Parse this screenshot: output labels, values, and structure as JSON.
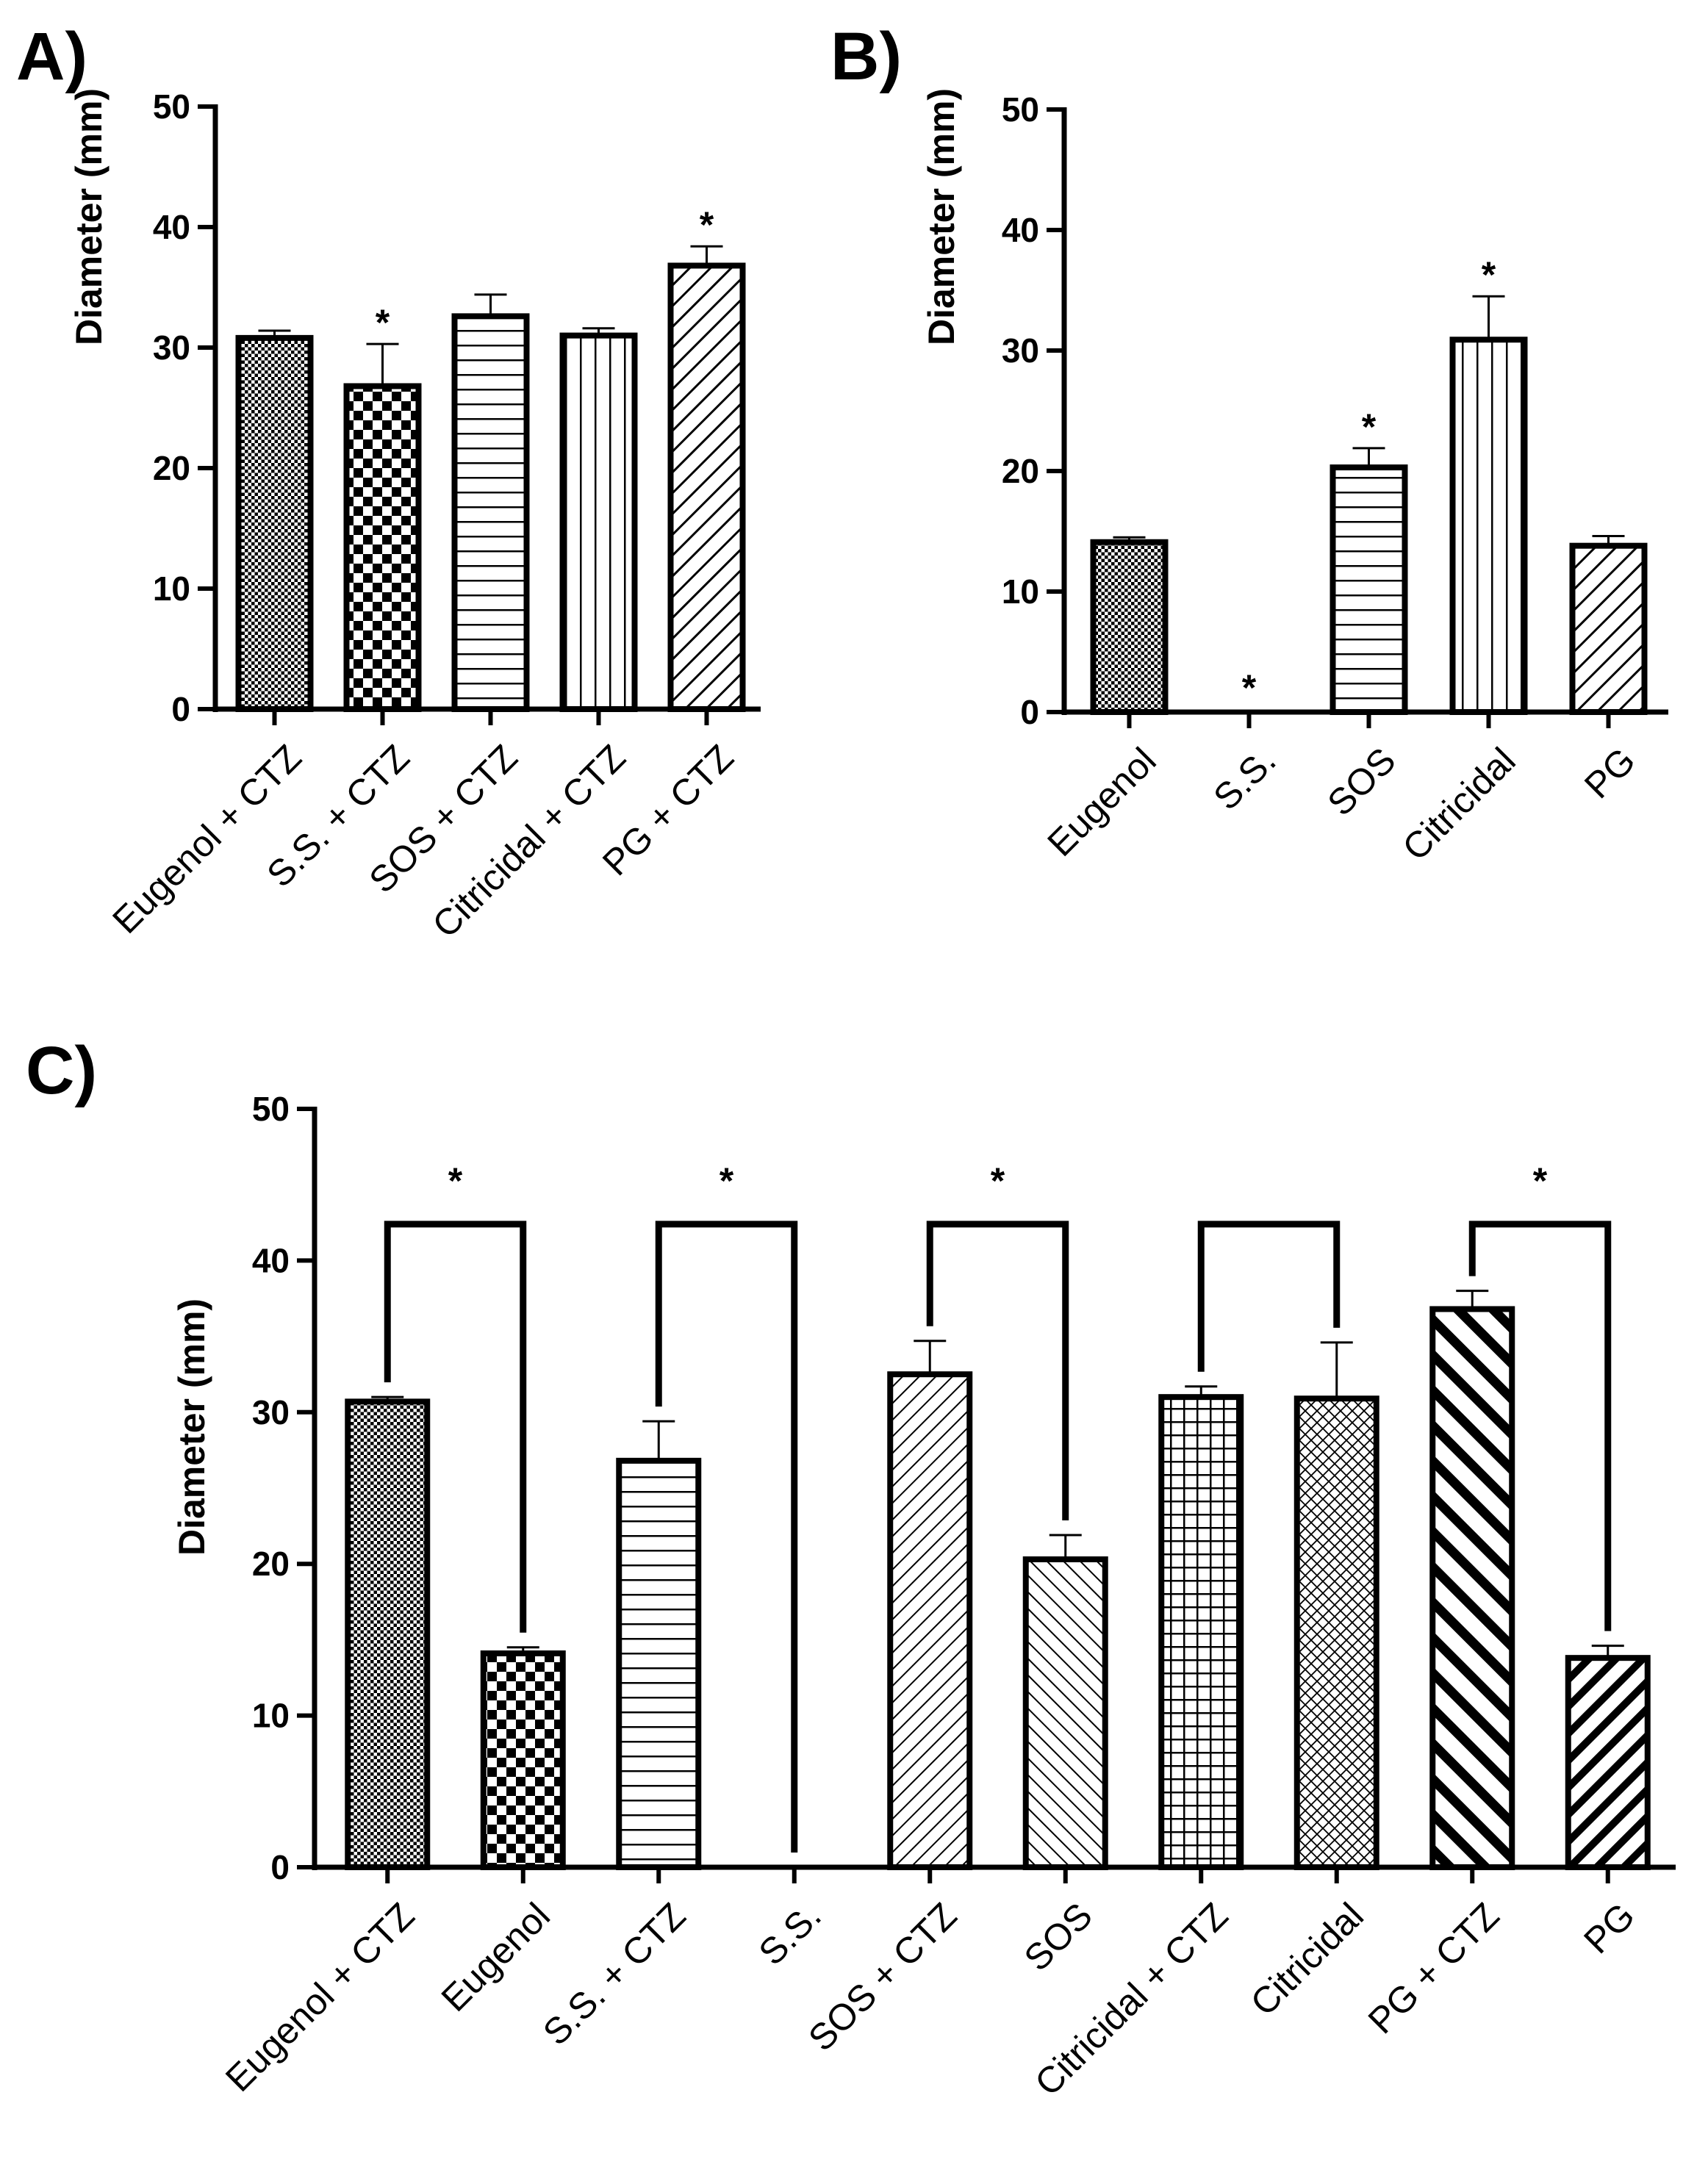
{
  "chart_data": [
    {
      "type": "bar",
      "panel_label": "A)",
      "ylabel": "Diameter (mm)",
      "ylim": [
        0,
        50
      ],
      "yticks": [
        "0",
        "10",
        "20",
        "30",
        "40",
        "50"
      ],
      "categories": [
        "Eugenol + CTZ",
        "S.S. + CTZ",
        "SOS + CTZ",
        "Citricidal + CTZ",
        "PG + CTZ"
      ],
      "values": [
        30.8,
        26.8,
        32.6,
        31.0,
        36.8
      ],
      "errors": [
        0.6,
        3.5,
        1.8,
        0.6,
        1.6
      ],
      "patterns": [
        "dots",
        "checker",
        "hlines",
        "vlines",
        "diag"
      ],
      "significance": [
        "",
        "*",
        "",
        "",
        "*"
      ]
    },
    {
      "type": "bar",
      "panel_label": "B)",
      "ylabel": "Diameter (mm)",
      "ylim": [
        0,
        50
      ],
      "yticks": [
        "0",
        "10",
        "20",
        "30",
        "40",
        "50"
      ],
      "categories": [
        "Eugenol",
        "S.S.",
        "SOS",
        "Citricidal",
        "PG"
      ],
      "values": [
        14.1,
        0,
        20.3,
        30.9,
        13.8
      ],
      "errors": [
        0.4,
        0,
        1.6,
        3.6,
        0.8
      ],
      "patterns": [
        "dots",
        "none",
        "hlines",
        "vlines",
        "diag"
      ],
      "significance": [
        "",
        "*",
        "*",
        "*",
        ""
      ]
    },
    {
      "type": "bar",
      "panel_label": "C)",
      "ylabel": "Diameter (mm)",
      "ylim": [
        0,
        50
      ],
      "yticks": [
        "0",
        "10",
        "20",
        "30",
        "40",
        "50"
      ],
      "categories": [
        "Eugenol + CTZ",
        "Eugenol",
        "S.S. + CTZ",
        "S.S.",
        "SOS + CTZ",
        "SOS",
        "Citricidal + CTZ",
        "Citricidal",
        "PG + CTZ",
        "PG"
      ],
      "values": [
        30.7,
        14.1,
        26.8,
        0,
        32.5,
        20.3,
        31.0,
        30.9,
        36.8,
        13.8
      ],
      "errors": [
        0.3,
        0.4,
        2.6,
        0,
        2.2,
        1.6,
        0.7,
        3.7,
        1.2,
        0.8
      ],
      "patterns": [
        "dots",
        "checker",
        "hlines",
        "none",
        "diagthin",
        "backdiag",
        "grid",
        "crosshatch",
        "diagthick",
        "diagthickdense"
      ],
      "comparisons": [
        {
          "pair": [
            0,
            1
          ],
          "label": "*"
        },
        {
          "pair": [
            2,
            3
          ],
          "label": "*"
        },
        {
          "pair": [
            4,
            5
          ],
          "label": "*"
        },
        {
          "pair": [
            6,
            7
          ],
          "label": ""
        },
        {
          "pair": [
            8,
            9
          ],
          "label": "*"
        }
      ]
    }
  ]
}
